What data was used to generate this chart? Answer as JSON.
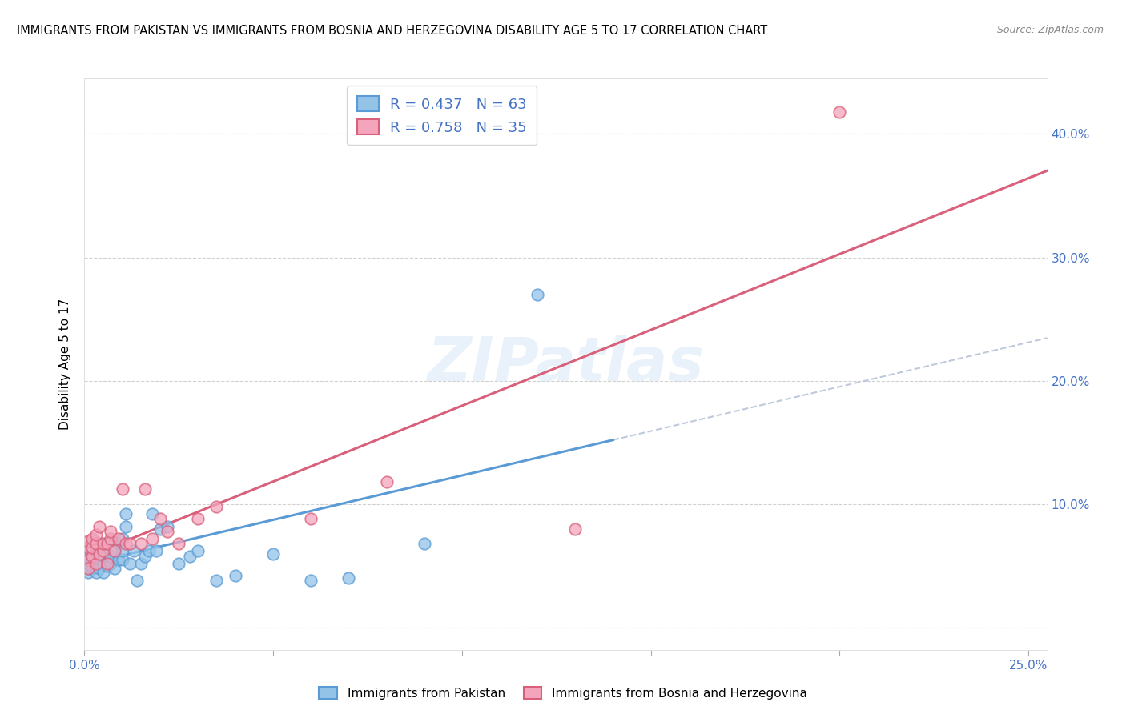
{
  "title": "IMMIGRANTS FROM PAKISTAN VS IMMIGRANTS FROM BOSNIA AND HERZEGOVINA DISABILITY AGE 5 TO 17 CORRELATION CHART",
  "source": "Source: ZipAtlas.com",
  "ylabel": "Disability Age 5 to 17",
  "xlim": [
    0.0,
    0.255
  ],
  "ylim": [
    -0.018,
    0.445
  ],
  "xticks": [
    0.0,
    0.05,
    0.1,
    0.15,
    0.2,
    0.25
  ],
  "yticks": [
    0.0,
    0.1,
    0.2,
    0.3,
    0.4
  ],
  "pakistan_color": "#93c4e8",
  "pakistan_edge": "#5b9bd5",
  "pakistan_line": "#5b9bd5",
  "bosnia_color": "#f4a5bc",
  "bosnia_edge": "#d9607a",
  "bosnia_line": "#d9607a",
  "dashed_color": "#b0bcd4",
  "pakistan_R": 0.437,
  "pakistan_N": 63,
  "bosnia_R": 0.758,
  "bosnia_N": 35,
  "pakistan_x": [
    0.001,
    0.001,
    0.001,
    0.001,
    0.001,
    0.001,
    0.001,
    0.001,
    0.001,
    0.002,
    0.002,
    0.002,
    0.002,
    0.002,
    0.002,
    0.003,
    0.003,
    0.003,
    0.003,
    0.003,
    0.004,
    0.004,
    0.004,
    0.004,
    0.005,
    0.005,
    0.005,
    0.005,
    0.006,
    0.006,
    0.006,
    0.007,
    0.007,
    0.007,
    0.008,
    0.008,
    0.009,
    0.009,
    0.01,
    0.01,
    0.01,
    0.011,
    0.011,
    0.012,
    0.013,
    0.014,
    0.015,
    0.016,
    0.017,
    0.018,
    0.019,
    0.02,
    0.022,
    0.025,
    0.028,
    0.03,
    0.035,
    0.04,
    0.05,
    0.06,
    0.07,
    0.09,
    0.12
  ],
  "pakistan_y": [
    0.05,
    0.055,
    0.06,
    0.045,
    0.065,
    0.055,
    0.048,
    0.052,
    0.058,
    0.05,
    0.06,
    0.055,
    0.062,
    0.048,
    0.07,
    0.05,
    0.058,
    0.065,
    0.045,
    0.062,
    0.055,
    0.06,
    0.048,
    0.068,
    0.052,
    0.058,
    0.065,
    0.045,
    0.05,
    0.06,
    0.068,
    0.052,
    0.058,
    0.07,
    0.048,
    0.062,
    0.055,
    0.068,
    0.055,
    0.062,
    0.072,
    0.082,
    0.092,
    0.052,
    0.062,
    0.038,
    0.052,
    0.058,
    0.062,
    0.092,
    0.062,
    0.08,
    0.082,
    0.052,
    0.058,
    0.062,
    0.038,
    0.042,
    0.06,
    0.038,
    0.04,
    0.068,
    0.27
  ],
  "bosnia_x": [
    0.001,
    0.001,
    0.001,
    0.001,
    0.002,
    0.002,
    0.002,
    0.003,
    0.003,
    0.003,
    0.004,
    0.004,
    0.005,
    0.005,
    0.006,
    0.006,
    0.007,
    0.007,
    0.008,
    0.009,
    0.01,
    0.011,
    0.012,
    0.015,
    0.016,
    0.018,
    0.02,
    0.022,
    0.025,
    0.03,
    0.035,
    0.06,
    0.08,
    0.13,
    0.2
  ],
  "bosnia_y": [
    0.055,
    0.065,
    0.048,
    0.07,
    0.058,
    0.065,
    0.072,
    0.052,
    0.068,
    0.075,
    0.06,
    0.082,
    0.062,
    0.068,
    0.052,
    0.068,
    0.072,
    0.078,
    0.062,
    0.072,
    0.112,
    0.068,
    0.068,
    0.068,
    0.112,
    0.072,
    0.088,
    0.078,
    0.068,
    0.088,
    0.098,
    0.088,
    0.118,
    0.08,
    0.418
  ],
  "watermark": "ZIPatlas",
  "background_color": "#ffffff",
  "grid_color": "#cccccc",
  "axis_color": "#4472c4",
  "title_fontsize": 10.5,
  "label_fontsize": 11,
  "tick_fontsize": 11
}
